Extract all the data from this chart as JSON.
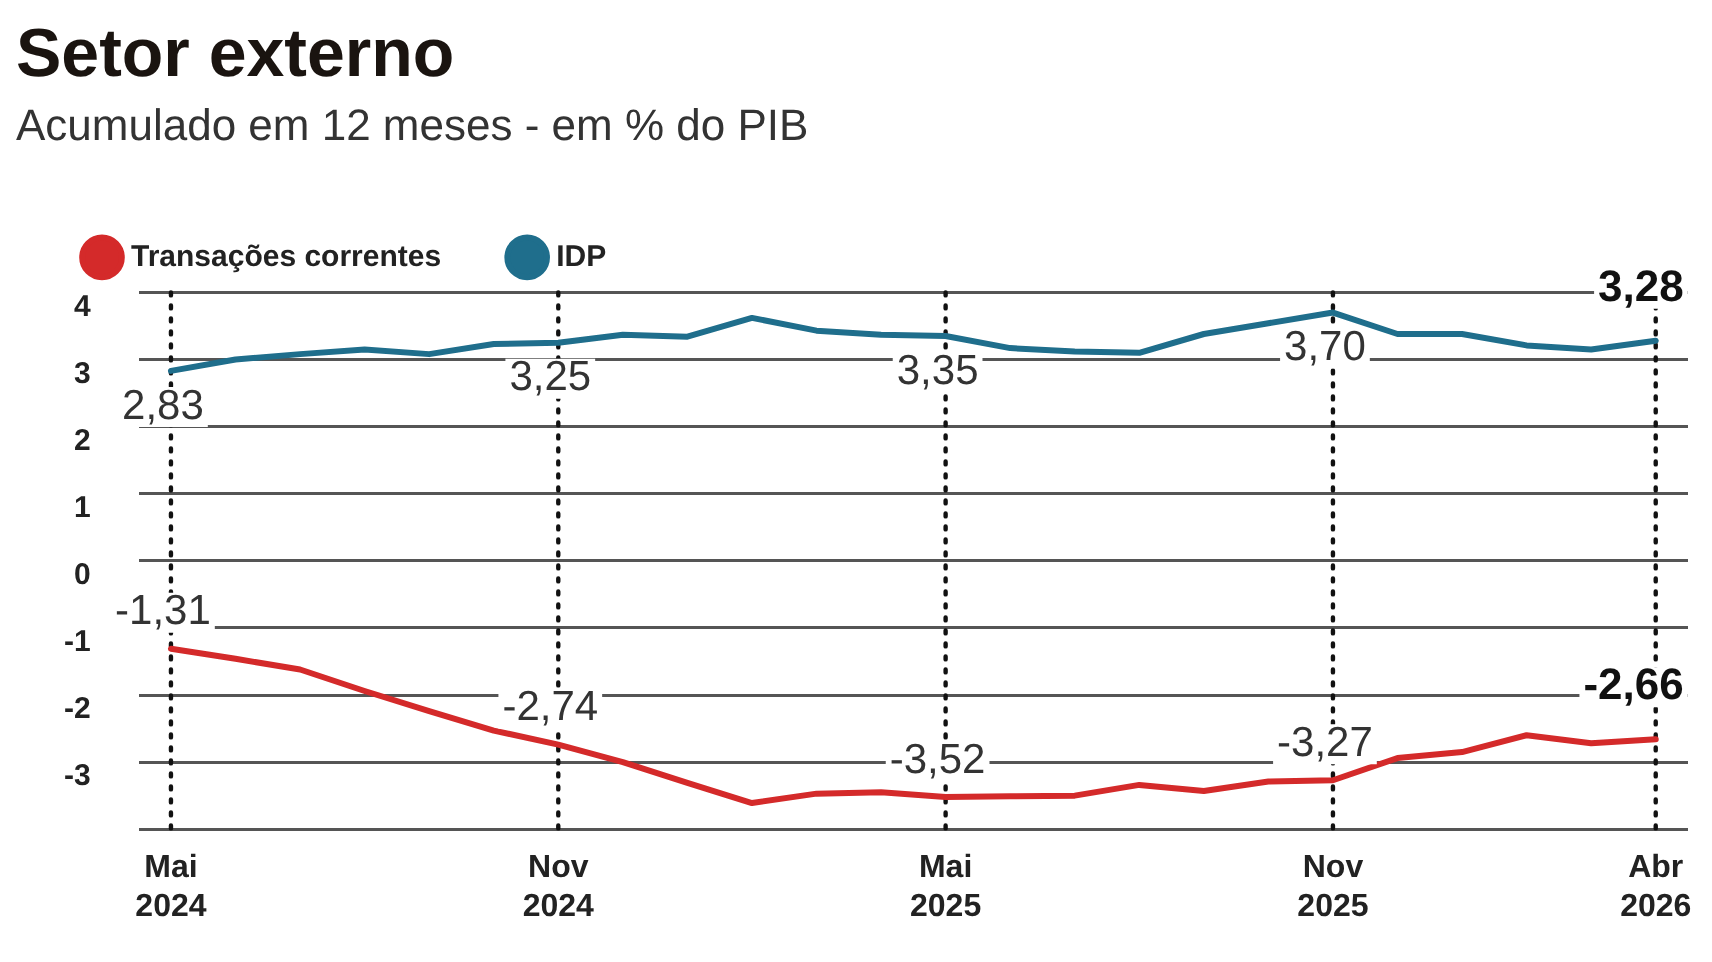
{
  "chart_data": {
    "type": "line",
    "title": "Setor externo",
    "subtitle": "Acumulado em 12 meses - em % do PIB",
    "categories": [
      "Mai 2024",
      null,
      null,
      null,
      null,
      null,
      "Nov 2024",
      null,
      null,
      null,
      null,
      null,
      "Mai 2025",
      null,
      null,
      null,
      null,
      null,
      "Nov 2025",
      null,
      null,
      null,
      null,
      "Abr 2026"
    ],
    "series": [
      {
        "name": "Transações correntes",
        "color": "#d42a2a",
        "values": [
          -1.31,
          -1.46,
          -1.62,
          -1.94,
          -2.24,
          -2.53,
          -2.74,
          -3.0,
          -3.31,
          -3.61,
          -3.47,
          -3.45,
          -3.52,
          -3.51,
          -3.5,
          -3.34,
          -3.43,
          -3.29,
          -3.27,
          -2.94,
          -2.85,
          -2.6,
          -2.72,
          -2.66
        ],
        "value_labels": [
          "-1,31",
          null,
          null,
          null,
          null,
          null,
          "-2,74",
          null,
          null,
          null,
          null,
          null,
          "-3,52",
          null,
          null,
          null,
          null,
          null,
          "-3,27",
          null,
          null,
          null,
          null,
          "-2,66"
        ]
      },
      {
        "name": "IDP",
        "color": "#1f6e8c",
        "values": [
          2.83,
          3.0,
          3.08,
          3.15,
          3.08,
          3.23,
          3.25,
          3.37,
          3.34,
          3.62,
          3.43,
          3.37,
          3.35,
          3.17,
          3.12,
          3.1,
          3.38,
          3.54,
          3.7,
          3.38,
          3.38,
          3.21,
          3.15,
          3.28
        ],
        "value_labels": [
          "2,83",
          null,
          null,
          null,
          null,
          null,
          "3,25",
          null,
          null,
          null,
          null,
          null,
          "3,35",
          null,
          null,
          null,
          null,
          null,
          "3,70",
          null,
          null,
          null,
          null,
          "3,28"
        ]
      }
    ],
    "ylim": [
      -4,
      4
    ],
    "yticks": [
      {
        "value": -4,
        "label": null
      },
      -3,
      -2,
      -1,
      0,
      1,
      2,
      3,
      4
    ],
    "grid": "y",
    "legend": "top left",
    "marker": "none",
    "line_style": "solid",
    "ref_lines": [
      {
        "axis": "x",
        "value": "Mai 2024",
        "line_style": "dotted"
      },
      {
        "axis": "x",
        "value": "Nov 2024",
        "line_style": "dotted"
      },
      {
        "axis": "x",
        "value": "Mai 2025",
        "line_style": "dotted"
      },
      {
        "axis": "x",
        "value": "Nov 2025",
        "line_style": "dotted"
      },
      {
        "axis": "x",
        "value": "Abr 2026",
        "line_style": "dotted"
      }
    ]
  }
}
